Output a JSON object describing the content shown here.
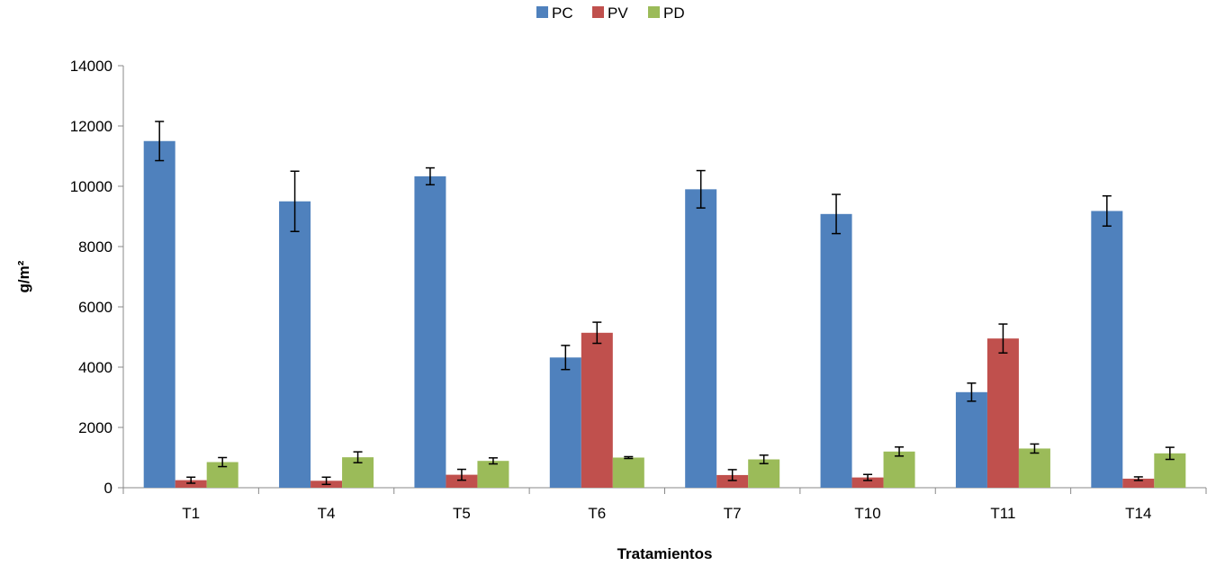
{
  "chart_data": {
    "type": "bar",
    "categories": [
      "T1",
      "T4",
      "T5",
      "T6",
      "T7",
      "T10",
      "T11",
      "T14"
    ],
    "series": [
      {
        "name": "PC",
        "color": "#4F81BD",
        "values": [
          11500,
          9500,
          10330,
          4320,
          9900,
          9080,
          3170,
          9180
        ],
        "errors": [
          650,
          1000,
          280,
          400,
          620,
          650,
          300,
          500
        ]
      },
      {
        "name": "PV",
        "color": "#C0504D",
        "values": [
          250,
          230,
          430,
          5140,
          420,
          340,
          4950,
          300
        ],
        "errors": [
          100,
          120,
          180,
          350,
          180,
          100,
          480,
          60
        ]
      },
      {
        "name": "PD",
        "color": "#9BBB59",
        "values": [
          850,
          1010,
          890,
          1000,
          940,
          1200,
          1300,
          1140
        ],
        "errors": [
          150,
          180,
          100,
          30,
          140,
          150,
          150,
          200
        ]
      }
    ],
    "xlabel": "Tratamientos",
    "ylabel": "g/m²",
    "ylim": [
      0,
      14000
    ],
    "yticks": [
      "0",
      "2000",
      "4000",
      "6000",
      "8000",
      "10000",
      "12000",
      "14000"
    ],
    "grid": false,
    "legend_position": "top-center"
  }
}
